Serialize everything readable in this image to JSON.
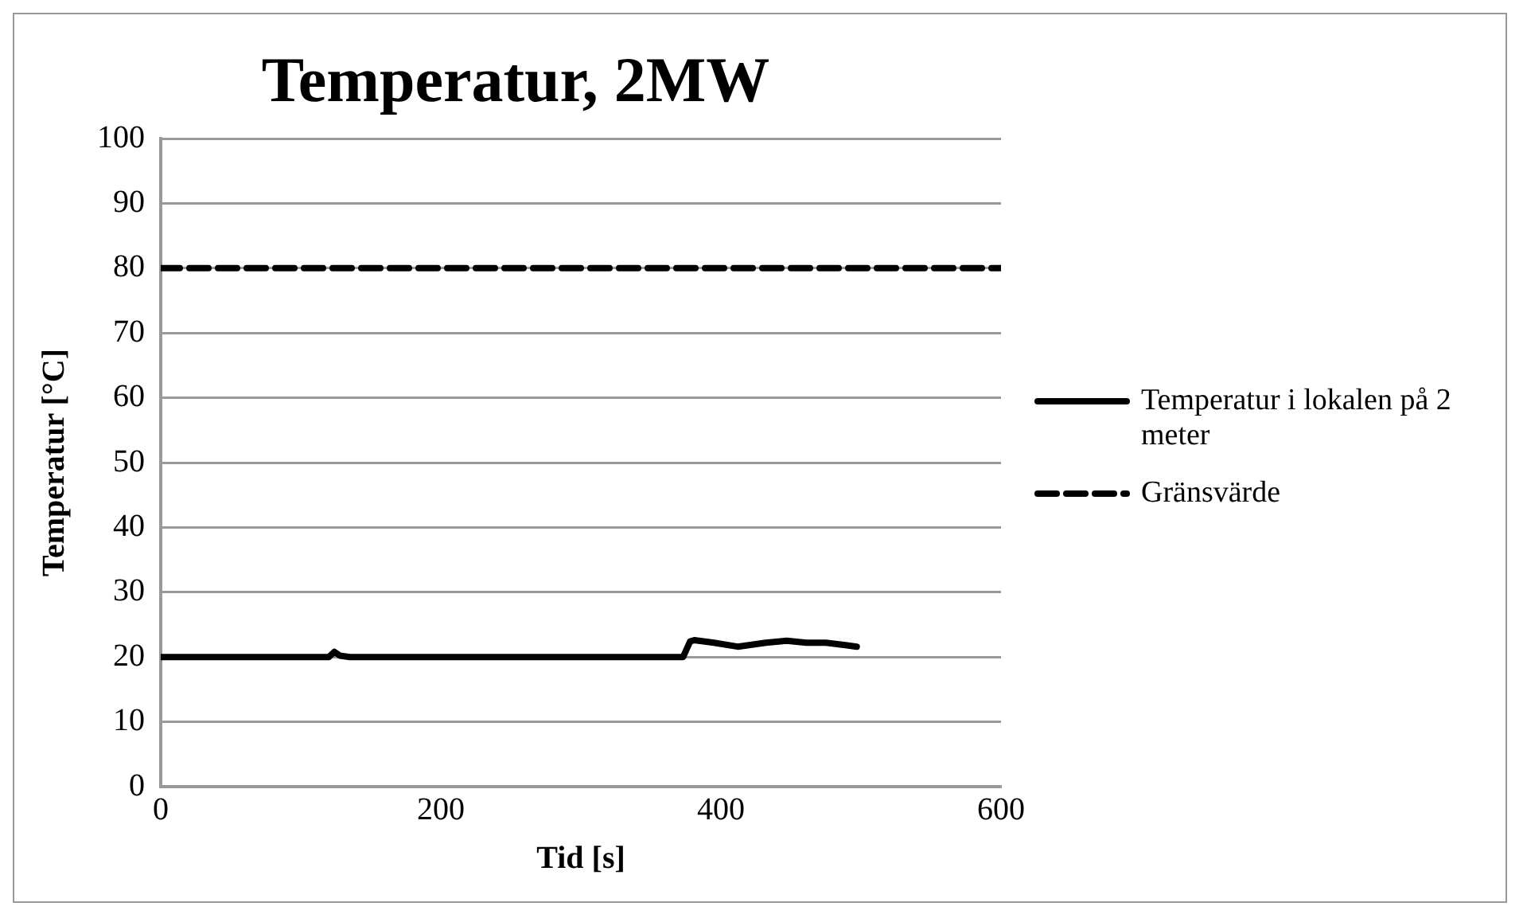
{
  "chart_data": {
    "type": "line",
    "title": "Temperatur, 2MW",
    "xlabel": "Tid [s]",
    "ylabel": "Temperatur [°C]",
    "xlim": [
      0,
      600
    ],
    "xticks": [
      0,
      200,
      400,
      600
    ],
    "ylim": [
      0,
      100
    ],
    "yticks": [
      0,
      10,
      20,
      30,
      40,
      50,
      60,
      70,
      80,
      90,
      100
    ],
    "grid": "y",
    "legend": "right",
    "marker": "none",
    "series": [
      {
        "name": "Temperatur i lokalen på 2 meter",
        "color": "#000000",
        "line_style": "solid",
        "x": [
          0,
          120,
          124,
          128,
          135,
          373,
          378,
          381,
          395,
          412,
          432,
          447,
          461,
          475,
          490,
          497
        ],
        "values": [
          20,
          20,
          20.8,
          20.2,
          20,
          20,
          22.4,
          22.6,
          22.2,
          21.6,
          22.2,
          22.5,
          22.2,
          22.2,
          21.8,
          21.6
        ]
      },
      {
        "name": "Gränsvärde",
        "color": "#000000",
        "line_style": "dashed",
        "x": [
          0,
          600
        ],
        "values": [
          80,
          80
        ]
      }
    ]
  }
}
